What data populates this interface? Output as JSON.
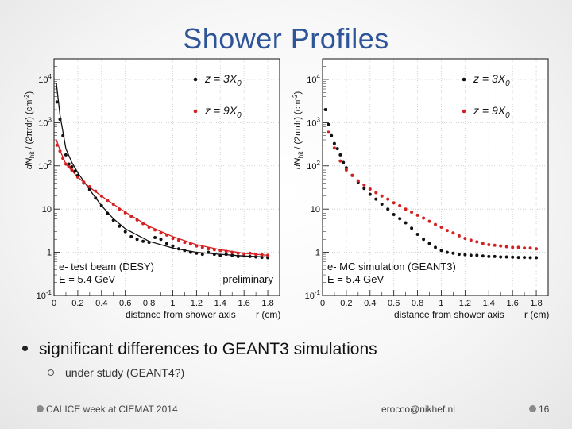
{
  "slide": {
    "title": "Shower Profiles",
    "bullet": "significant differences to GEANT3 simulations",
    "sub_bullet": "under study (GEANT4?)",
    "footer_left": "CALICE week at CIEMAT 2014",
    "footer_center": "erocco@nikhef.nl",
    "page_number": "16"
  },
  "chart_data": [
    {
      "type": "scatter",
      "legend_entries": [
        "z = 3X0",
        "z = 9X0"
      ],
      "annotations": [
        "e- test beam (DESY)",
        "E = 5.4 GeV",
        "preliminary"
      ],
      "ylabel_parts": [
        "dN",
        "hit",
        " / (2πrdr)  (cm",
        "-2",
        ")"
      ],
      "xlabel": "distance from shower axis",
      "xlabel_r": "r (cm)",
      "xticks": [
        "0",
        "0.2",
        "0.4",
        "0.6",
        "0.8",
        "1",
        "1.2",
        "1.4",
        "1.6",
        "1.8"
      ],
      "yticks": [
        "10-1",
        "1",
        "10",
        "102",
        "103",
        "104"
      ],
      "yscale": "log",
      "xlim": [
        0,
        1.9
      ],
      "ylim": [
        0.1,
        30000
      ],
      "series": [
        {
          "name": "z = 3X0",
          "color": "#111111",
          "x": [
            0.025,
            0.05,
            0.075,
            0.1,
            0.125,
            0.15,
            0.175,
            0.2,
            0.25,
            0.3,
            0.35,
            0.4,
            0.45,
            0.5,
            0.55,
            0.6,
            0.65,
            0.7,
            0.75,
            0.8,
            0.85,
            0.9,
            0.95,
            1.0,
            1.05,
            1.1,
            1.15,
            1.2,
            1.25,
            1.3,
            1.35,
            1.4,
            1.45,
            1.5,
            1.55,
            1.6,
            1.65,
            1.7,
            1.75,
            1.8
          ],
          "y": [
            3000,
            1200,
            500,
            180,
            110,
            95,
            75,
            60,
            40,
            28,
            18,
            12,
            8,
            5.5,
            4.0,
            3.0,
            2.3,
            2.0,
            1.8,
            1.7,
            2.2,
            2.0,
            1.6,
            1.4,
            1.2,
            1.1,
            1.0,
            0.95,
            0.9,
            1.0,
            0.9,
            0.85,
            0.9,
            0.85,
            0.8,
            0.82,
            0.8,
            0.78,
            0.76,
            0.75
          ]
        },
        {
          "name": "z = 9X0",
          "color": "#d42020",
          "x": [
            0.025,
            0.05,
            0.075,
            0.1,
            0.125,
            0.15,
            0.2,
            0.25,
            0.3,
            0.35,
            0.4,
            0.45,
            0.5,
            0.55,
            0.6,
            0.65,
            0.7,
            0.75,
            0.8,
            0.85,
            0.9,
            0.95,
            1.0,
            1.05,
            1.1,
            1.15,
            1.2,
            1.25,
            1.3,
            1.35,
            1.4,
            1.45,
            1.5,
            1.55,
            1.6,
            1.65,
            1.7,
            1.75,
            1.8
          ],
          "y": [
            300,
            220,
            150,
            110,
            95,
            80,
            55,
            42,
            33,
            26,
            20,
            16,
            13,
            10,
            8.2,
            6.8,
            5.6,
            4.6,
            3.8,
            3.3,
            2.8,
            2.5,
            2.1,
            1.9,
            1.7,
            1.55,
            1.4,
            1.3,
            1.2,
            1.15,
            1.1,
            1.05,
            1.0,
            0.95,
            0.92,
            0.95,
            0.9,
            0.88,
            0.85
          ]
        }
      ],
      "fits": [
        {
          "name": "z = 3X0 fit",
          "color": "#111111",
          "x": [
            0.02,
            0.05,
            0.1,
            0.15,
            0.2,
            0.3,
            0.4,
            0.5,
            0.6,
            0.8,
            1.0,
            1.2,
            1.4,
            1.6,
            1.8
          ],
          "y": [
            8000,
            1500,
            250,
            120,
            70,
            28,
            12,
            6,
            3.5,
            1.8,
            1.25,
            1.0,
            0.9,
            0.82,
            0.78
          ]
        },
        {
          "name": "z = 9X0 fit",
          "color": "#d42020",
          "x": [
            0.02,
            0.05,
            0.1,
            0.2,
            0.3,
            0.4,
            0.5,
            0.6,
            0.8,
            1.0,
            1.2,
            1.4,
            1.6,
            1.8
          ],
          "y": [
            400,
            230,
            110,
            55,
            32,
            20,
            13,
            8.5,
            4.0,
            2.3,
            1.5,
            1.15,
            0.95,
            0.85
          ]
        }
      ]
    },
    {
      "type": "scatter",
      "legend_entries": [
        "z = 3X0",
        "z = 9X0"
      ],
      "annotations": [
        "e- MC simulation (GEANT3)",
        "E = 5.4 GeV"
      ],
      "ylabel_parts": [
        "dN",
        "hit",
        " / (2πrdr)  (cm",
        "-2",
        ")"
      ],
      "xlabel": "distance from shower axis",
      "xlabel_r": "r (cm)",
      "xticks": [
        "0",
        "0.2",
        "0.4",
        "0.6",
        "0.8",
        "1",
        "1.2",
        "1.4",
        "1.6",
        "1.8"
      ],
      "yticks": [
        "10-1",
        "1",
        "10",
        "102",
        "103",
        "104"
      ],
      "yscale": "log",
      "xlim": [
        0,
        1.9
      ],
      "ylim": [
        0.1,
        30000
      ],
      "series": [
        {
          "name": "z = 3X0",
          "color": "#111111",
          "x": [
            0.025,
            0.05,
            0.075,
            0.1,
            0.125,
            0.15,
            0.175,
            0.2,
            0.25,
            0.3,
            0.35,
            0.4,
            0.45,
            0.5,
            0.55,
            0.6,
            0.65,
            0.7,
            0.75,
            0.8,
            0.85,
            0.9,
            0.95,
            1.0,
            1.05,
            1.1,
            1.15,
            1.2,
            1.25,
            1.3,
            1.35,
            1.4,
            1.45,
            1.5,
            1.55,
            1.6,
            1.65,
            1.7,
            1.75,
            1.8
          ],
          "y": [
            2000,
            900,
            500,
            330,
            250,
            180,
            120,
            90,
            60,
            42,
            30,
            22,
            17,
            13,
            10,
            7.5,
            6.0,
            4.8,
            3.6,
            2.6,
            2.0,
            1.6,
            1.3,
            1.1,
            1.0,
            0.95,
            0.9,
            0.88,
            0.85,
            0.85,
            0.82,
            0.8,
            0.8,
            0.78,
            0.78,
            0.77,
            0.76,
            0.76,
            0.75,
            0.75
          ]
        },
        {
          "name": "z = 9X0",
          "color": "#d42020",
          "x": [
            0.05,
            0.1,
            0.15,
            0.2,
            0.25,
            0.3,
            0.35,
            0.4,
            0.45,
            0.5,
            0.55,
            0.6,
            0.65,
            0.7,
            0.75,
            0.8,
            0.85,
            0.9,
            0.95,
            1.0,
            1.05,
            1.1,
            1.15,
            1.2,
            1.25,
            1.3,
            1.35,
            1.4,
            1.45,
            1.5,
            1.55,
            1.6,
            1.65,
            1.7,
            1.75,
            1.8
          ],
          "y": [
            600,
            260,
            130,
            80,
            60,
            45,
            36,
            29,
            24,
            20,
            17,
            14,
            12,
            10,
            8.5,
            7.2,
            6.2,
            5.2,
            4.4,
            3.8,
            3.2,
            2.8,
            2.4,
            2.1,
            1.9,
            1.75,
            1.6,
            1.5,
            1.45,
            1.4,
            1.35,
            1.3,
            1.3,
            1.25,
            1.25,
            1.2
          ]
        }
      ],
      "fits": []
    }
  ]
}
